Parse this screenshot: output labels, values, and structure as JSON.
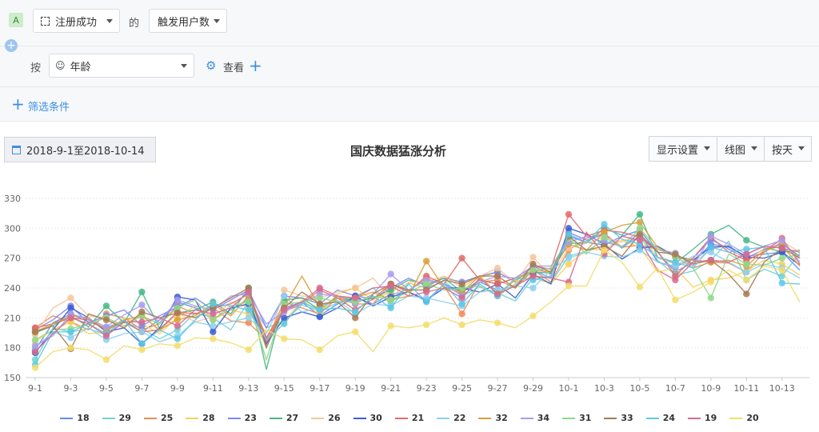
{
  "toolbar": {
    "event_badge": "A",
    "event_name": "注册成功",
    "of_text": "的",
    "metric": "触发用户数",
    "by_text": "按",
    "group_by": "年龄",
    "view_label": "查看",
    "filter_label": "筛选条件"
  },
  "header": {
    "date_range": "2018-9-1至2018-10-14",
    "display_settings": "显示设置",
    "chart_type_label": "线图",
    "granularity": "按天"
  },
  "colors": {
    "accent": "#3d8fe0"
  },
  "chart_data": {
    "type": "line",
    "title": "国庆数据猛涨分析",
    "xlabel": "",
    "ylabel": "",
    "ylim": [
      150,
      330
    ],
    "yticks": [
      150,
      180,
      210,
      240,
      270,
      300,
      330
    ],
    "grid": true,
    "legend_position": "bottom",
    "x": [
      "9-1",
      "9-2",
      "9-3",
      "9-4",
      "9-5",
      "9-6",
      "9-7",
      "9-8",
      "9-9",
      "9-10",
      "9-11",
      "9-12",
      "9-13",
      "9-14",
      "9-15",
      "9-16",
      "9-17",
      "9-18",
      "9-19",
      "9-20",
      "9-21",
      "9-22",
      "9-23",
      "9-24",
      "9-25",
      "9-26",
      "9-27",
      "9-28",
      "9-29",
      "9-30",
      "10-1",
      "10-2",
      "10-3",
      "10-4",
      "10-5",
      "10-6",
      "10-7",
      "10-8",
      "10-9",
      "10-10",
      "10-11",
      "10-12",
      "10-13",
      "10-14"
    ],
    "x_tick_labels": [
      "9-1",
      "9-3",
      "9-5",
      "9-7",
      "9-9",
      "9-11",
      "9-13",
      "9-15",
      "9-17",
      "9-19",
      "9-21",
      "9-23",
      "9-25",
      "9-27",
      "9-29",
      "10-1",
      "10-3",
      "10-5",
      "10-7",
      "10-9",
      "10-11",
      "10-13"
    ],
    "series": [
      {
        "name": "18",
        "color": "#5b8ff9",
        "values": [
          178,
          205,
          214,
          206,
          200,
          207,
          196,
          208,
          226,
          220,
          209,
          218,
          229,
          182,
          220,
          226,
          212,
          224,
          230,
          224,
          234,
          236,
          227,
          244,
          236,
          246,
          238,
          242,
          258,
          250,
          292,
          286,
          283,
          292,
          298,
          276,
          256,
          266,
          284,
          281,
          272,
          274,
          276,
          258
        ]
      },
      {
        "name": "29",
        "color": "#6dd3d3",
        "values": [
          168,
          200,
          196,
          199,
          193,
          206,
          199,
          189,
          198,
          215,
          210,
          198,
          227,
          200,
          207,
          223,
          217,
          225,
          232,
          240,
          224,
          245,
          240,
          247,
          232,
          241,
          235,
          227,
          250,
          245,
          272,
          277,
          288,
          281,
          291,
          268,
          253,
          257,
          268,
          287,
          248,
          259,
          252,
          275
        ]
      },
      {
        "name": "25",
        "color": "#f08b55",
        "values": [
          200,
          212,
          206,
          198,
          214,
          210,
          198,
          204,
          222,
          214,
          220,
          207,
          205,
          188,
          226,
          220,
          214,
          230,
          224,
          224,
          244,
          237,
          250,
          242,
          214,
          246,
          248,
          240,
          258,
          246,
          278,
          290,
          295,
          281,
          283,
          279,
          272,
          260,
          266,
          265,
          256,
          276,
          286,
          270
        ]
      },
      {
        "name": "28",
        "color": "#f6d05a",
        "values": [
          186,
          198,
          206,
          194,
          196,
          210,
          204,
          194,
          211,
          222,
          208,
          218,
          214,
          196,
          206,
          228,
          215,
          234,
          240,
          228,
          236,
          245,
          240,
          252,
          244,
          250,
          256,
          246,
          252,
          244,
          264,
          278,
          279,
          288,
          281,
          256,
          260,
          241,
          248,
          250,
          257,
          268,
          264,
          253
        ]
      },
      {
        "name": "23",
        "color": "#7c86f0",
        "values": [
          198,
          208,
          222,
          205,
          212,
          218,
          202,
          212,
          221,
          230,
          218,
          228,
          238,
          200,
          232,
          230,
          224,
          238,
          232,
          229,
          240,
          250,
          242,
          250,
          246,
          252,
          256,
          246,
          262,
          254,
          296,
          288,
          294,
          280,
          296,
          266,
          261,
          270,
          289,
          279,
          270,
          279,
          284,
          272
        ]
      },
      {
        "name": "27",
        "color": "#45b887",
        "values": [
          195,
          202,
          212,
          201,
          222,
          205,
          236,
          199,
          215,
          218,
          226,
          214,
          240,
          158,
          228,
          230,
          218,
          232,
          226,
          230,
          238,
          248,
          244,
          250,
          236,
          248,
          244,
          250,
          256,
          255,
          285,
          285,
          300,
          293,
          314,
          271,
          265,
          279,
          294,
          303,
          288,
          281,
          276,
          278
        ]
      },
      {
        "name": "26",
        "color": "#f5c79b",
        "values": [
          193,
          220,
          230,
          212,
          210,
          200,
          214,
          196,
          215,
          206,
          211,
          226,
          221,
          180,
          238,
          232,
          230,
          236,
          240,
          250,
          230,
          246,
          246,
          252,
          240,
          252,
          260,
          245,
          271,
          252,
          280,
          285,
          291,
          286,
          296,
          270,
          264,
          265,
          279,
          283,
          266,
          280,
          287,
          276
        ]
      },
      {
        "name": "30",
        "color": "#3b5dd1",
        "values": [
          175,
          198,
          220,
          210,
          196,
          200,
          184,
          200,
          231,
          228,
          196,
          220,
          224,
          184,
          210,
          216,
          211,
          220,
          232,
          222,
          231,
          236,
          228,
          240,
          240,
          236,
          244,
          230,
          254,
          244,
          300,
          294,
          284,
          269,
          280,
          282,
          272,
          268,
          281,
          282,
          271,
          270,
          276,
          263
        ]
      },
      {
        "name": "21",
        "color": "#e66a6a",
        "values": [
          200,
          204,
          210,
          208,
          198,
          206,
          196,
          198,
          216,
          214,
          220,
          224,
          234,
          186,
          218,
          224,
          238,
          230,
          218,
          229,
          244,
          236,
          252,
          244,
          270,
          248,
          244,
          250,
          262,
          259,
          314,
          292,
          298,
          296,
          291,
          277,
          252,
          270,
          291,
          276,
          268,
          276,
          290,
          264
        ]
      },
      {
        "name": "22",
        "color": "#8ed0f0",
        "values": [
          180,
          196,
          190,
          200,
          188,
          194,
          196,
          186,
          192,
          206,
          202,
          206,
          210,
          194,
          232,
          216,
          220,
          228,
          214,
          224,
          222,
          232,
          230,
          226,
          222,
          236,
          238,
          242,
          240,
          258,
          270,
          276,
          272,
          271,
          278,
          266,
          262,
          272,
          276,
          266,
          256,
          264,
          260,
          250
        ]
      },
      {
        "name": "32",
        "color": "#d8a038",
        "values": [
          196,
          204,
          212,
          210,
          198,
          208,
          212,
          198,
          208,
          212,
          224,
          212,
          232,
          190,
          221,
          252,
          221,
          230,
          230,
          236,
          228,
          232,
          267,
          240,
          236,
          252,
          234,
          248,
          258,
          256,
          284,
          278,
          296,
          303,
          306,
          281,
          271,
          268,
          266,
          268,
          262,
          278,
          282,
          262
        ]
      },
      {
        "name": "34",
        "color": "#a89cf0",
        "values": [
          182,
          192,
          214,
          209,
          201,
          213,
          223,
          205,
          228,
          222,
          218,
          232,
          234,
          204,
          216,
          224,
          234,
          232,
          224,
          234,
          254,
          238,
          248,
          244,
          232,
          246,
          252,
          250,
          262,
          262,
          286,
          292,
          286,
          282,
          292,
          279,
          275,
          262,
          292,
          284,
          274,
          282,
          288,
          266
        ]
      },
      {
        "name": "31",
        "color": "#8fd88a",
        "values": [
          188,
          198,
          199,
          204,
          210,
          202,
          212,
          204,
          220,
          228,
          208,
          222,
          226,
          168,
          224,
          226,
          230,
          226,
          226,
          232,
          228,
          236,
          244,
          238,
          240,
          242,
          232,
          244,
          258,
          260,
          290,
          274,
          291,
          281,
          300,
          279,
          272,
          260,
          230,
          274,
          264,
          263,
          270,
          274
        ]
      },
      {
        "name": "33",
        "color": "#a87a52",
        "values": [
          196,
          202,
          179,
          214,
          208,
          200,
          216,
          210,
          215,
          210,
          220,
          230,
          240,
          180,
          220,
          236,
          224,
          226,
          210,
          234,
          244,
          238,
          238,
          248,
          244,
          252,
          252,
          240,
          264,
          256,
          292,
          278,
          282,
          272,
          294,
          276,
          274,
          264,
          268,
          254,
          234,
          266,
          280,
          270
        ]
      },
      {
        "name": "24",
        "color": "#5cc8e8",
        "values": [
          163,
          196,
          196,
          204,
          194,
          208,
          184,
          198,
          189,
          208,
          224,
          222,
          218,
          188,
          204,
          226,
          218,
          220,
          216,
          232,
          220,
          244,
          226,
          244,
          224,
          244,
          232,
          250,
          248,
          252,
          294,
          286,
          304,
          289,
          284,
          271,
          266,
          260,
          281,
          276,
          279,
          281,
          245,
          244
        ]
      },
      {
        "name": "19",
        "color": "#d66b8f",
        "values": [
          176,
          194,
          210,
          204,
          192,
          206,
          206,
          210,
          202,
          218,
          214,
          220,
          236,
          190,
          218,
          226,
          240,
          232,
          230,
          240,
          242,
          232,
          236,
          240,
          230,
          250,
          234,
          242,
          252,
          250,
          246,
          296,
          274,
          292,
          288,
          258,
          248,
          266,
          268,
          266,
          274,
          282,
          280,
          276
        ]
      },
      {
        "name": "20",
        "color": "#f3dd6a",
        "values": [
          160,
          176,
          180,
          178,
          168,
          182,
          178,
          184,
          182,
          190,
          189,
          185,
          178,
          198,
          189,
          188,
          178,
          192,
          196,
          176,
          202,
          200,
          203,
          210,
          203,
          208,
          205,
          200,
          212,
          226,
          242,
          242,
          278,
          266,
          241,
          260,
          228,
          236,
          246,
          258,
          248,
          262,
          258,
          226
        ]
      }
    ]
  }
}
